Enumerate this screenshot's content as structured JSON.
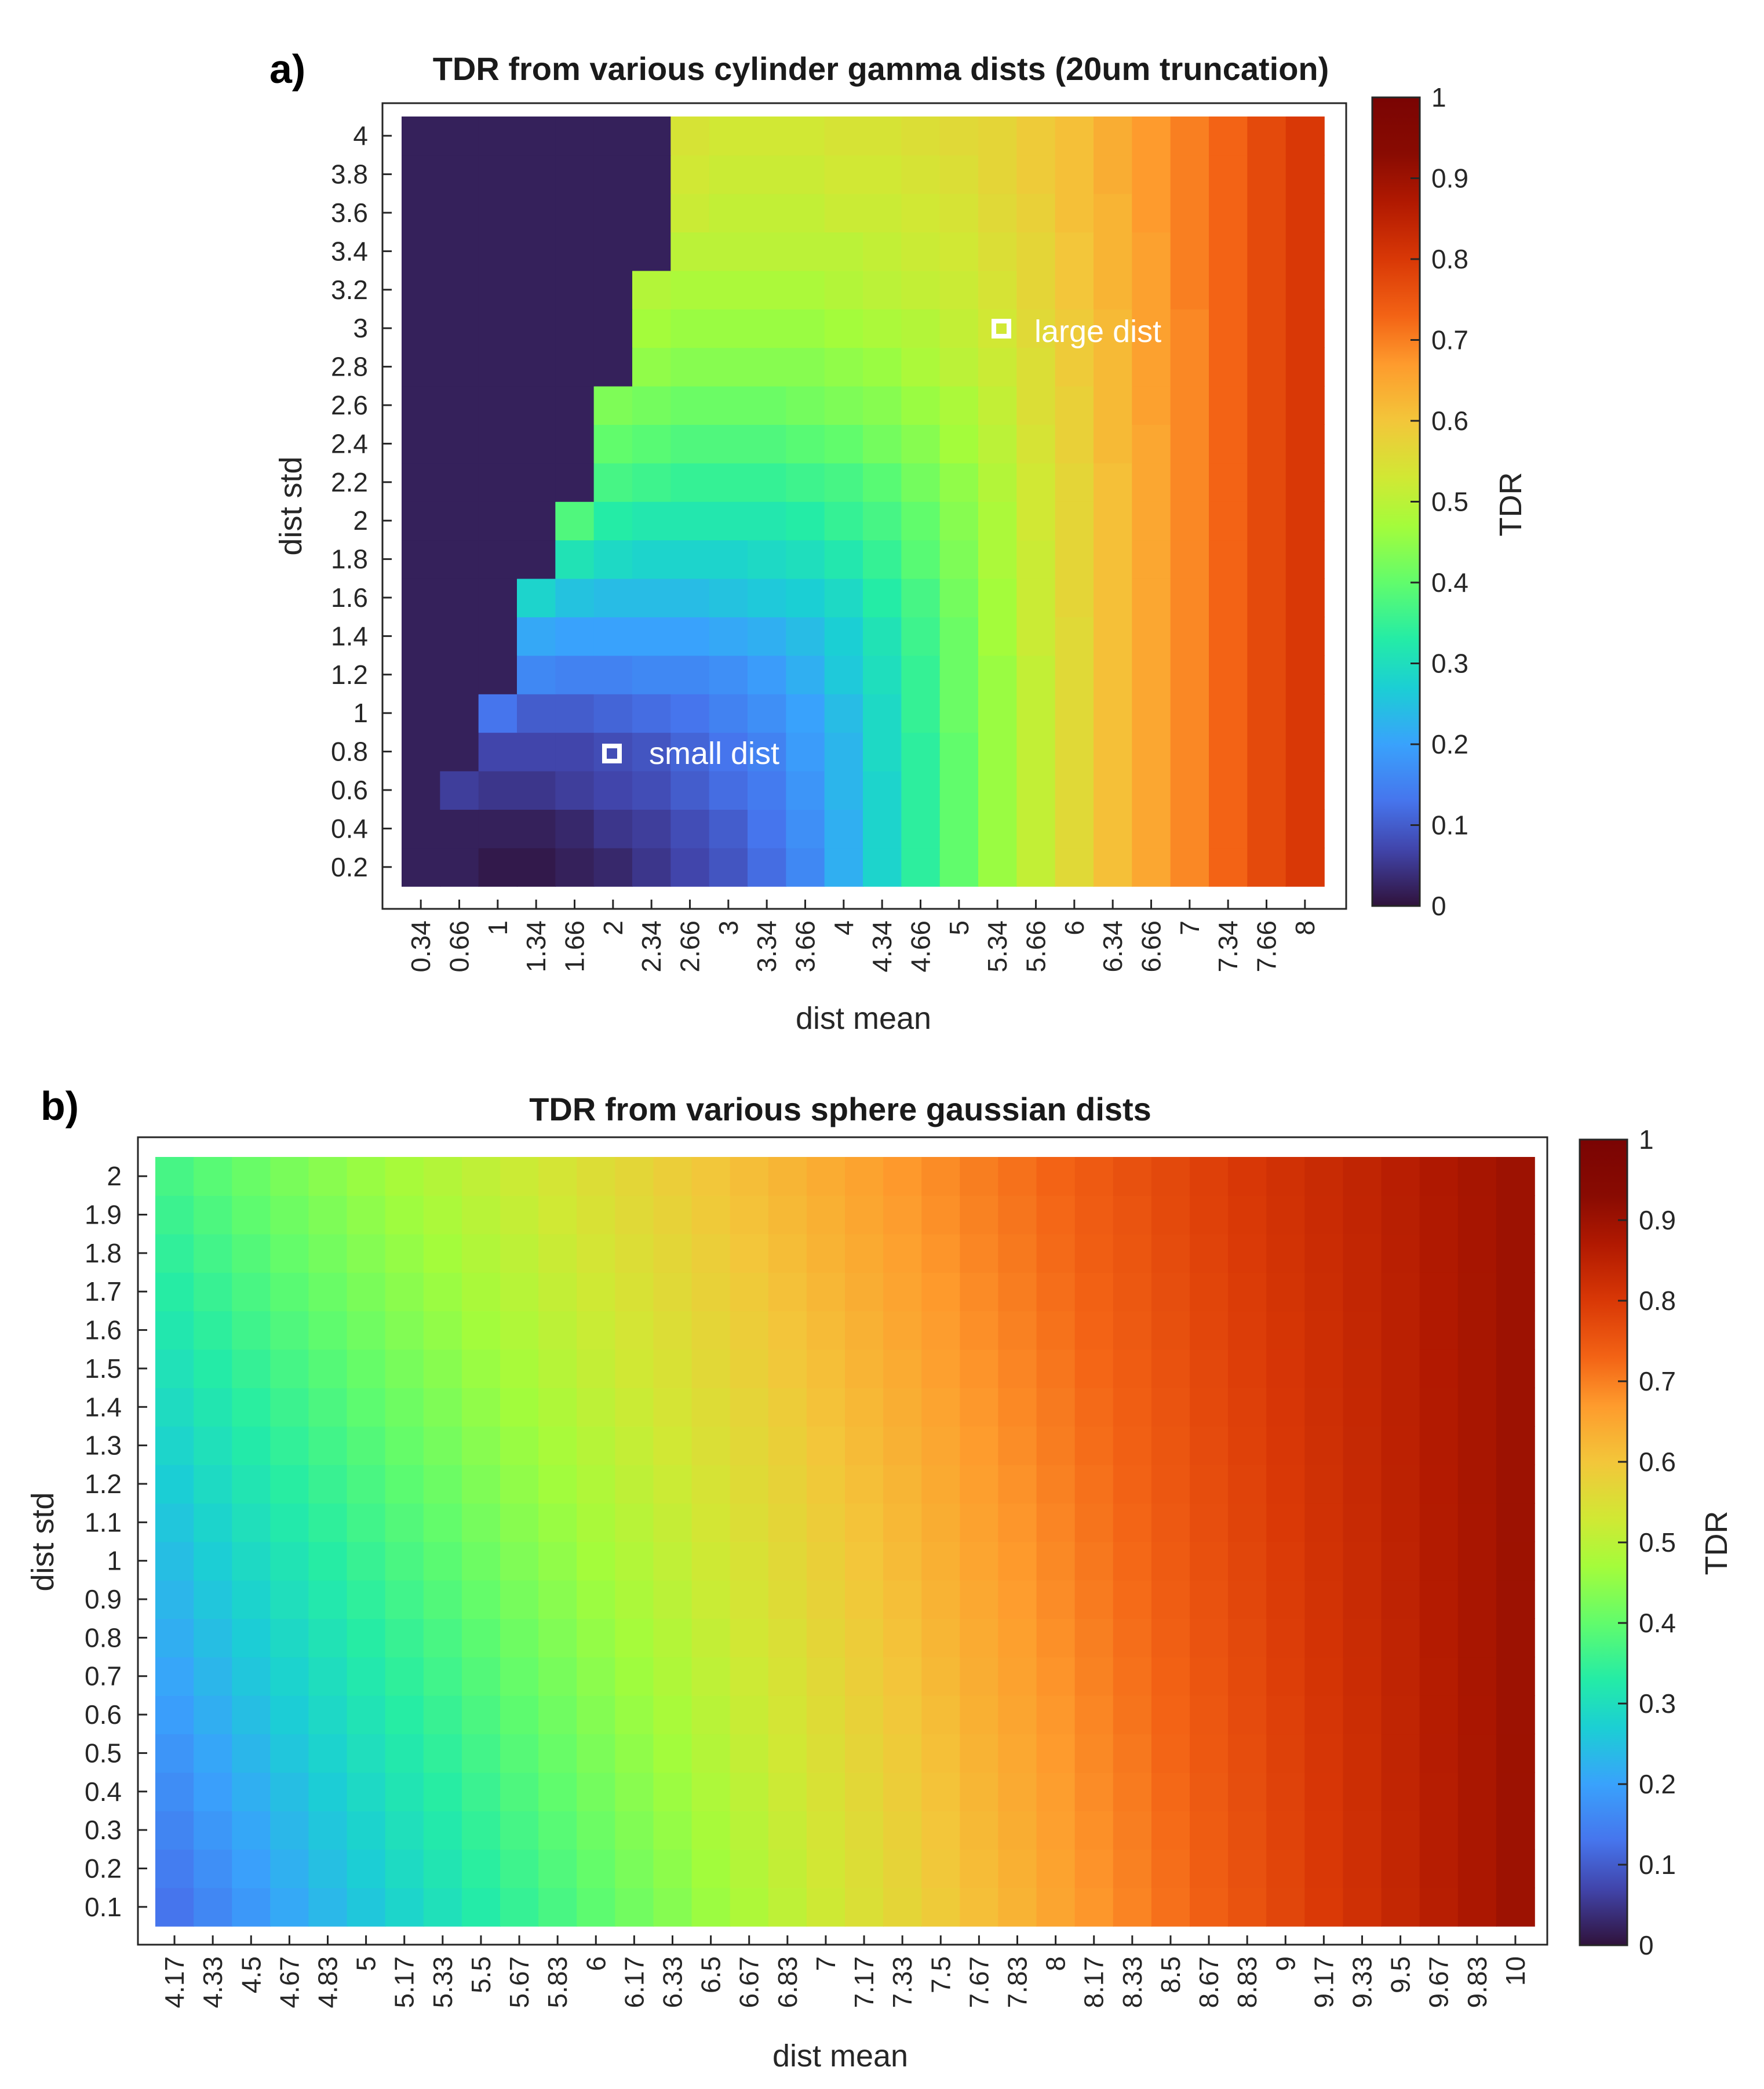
{
  "chart_data": [
    {
      "panel": "a)",
      "type": "heatmap",
      "title": "TDR from various cylinder gamma dists (20um truncation)",
      "xlabel": "dist mean",
      "ylabel": "dist std",
      "colorbar_label": "TDR",
      "colormap": "turbo",
      "clim": [
        0,
        1
      ],
      "colorbar_ticks": [
        "0",
        "0.1",
        "0.2",
        "0.3",
        "0.4",
        "0.5",
        "0.6",
        "0.7",
        "0.8",
        "0.9",
        "1"
      ],
      "x_ticks": [
        "0.34",
        "0.66",
        "1",
        "1.34",
        "1.66",
        "2",
        "2.34",
        "2.66",
        "3",
        "3.34",
        "3.66",
        "4",
        "4.34",
        "4.66",
        "5",
        "5.34",
        "5.66",
        "6",
        "6.34",
        "6.66",
        "7",
        "7.34",
        "7.66",
        "8"
      ],
      "y_ticks": [
        "0.2",
        "0.4",
        "0.6",
        "0.8",
        "1",
        "1.2",
        "1.4",
        "1.6",
        "1.8",
        "2",
        "2.2",
        "2.4",
        "2.6",
        "2.8",
        "3",
        "3.2",
        "3.4",
        "3.6",
        "3.8",
        "4"
      ],
      "grid": false,
      "values_description": "rows = dist std from 0.2 to 4 (bottom to top), columns = dist mean from 0.34 to 8 (left to right)",
      "values": [
        [
          0.02,
          0.02,
          0.01,
          0.01,
          0.02,
          0.03,
          0.05,
          0.07,
          0.09,
          0.12,
          0.16,
          0.22,
          0.28,
          0.34,
          0.4,
          0.46,
          0.51,
          0.56,
          0.61,
          0.65,
          0.69,
          0.73,
          0.77,
          0.8
        ],
        [
          0.02,
          0.02,
          0.02,
          0.02,
          0.03,
          0.05,
          0.06,
          0.08,
          0.1,
          0.13,
          0.17,
          0.22,
          0.28,
          0.34,
          0.4,
          0.46,
          0.51,
          0.56,
          0.61,
          0.65,
          0.69,
          0.73,
          0.77,
          0.8
        ],
        [
          0.02,
          0.06,
          0.05,
          0.05,
          0.06,
          0.07,
          0.08,
          0.1,
          0.12,
          0.14,
          0.18,
          0.23,
          0.28,
          0.34,
          0.4,
          0.46,
          0.51,
          0.56,
          0.61,
          0.65,
          0.69,
          0.73,
          0.77,
          0.8
        ],
        [
          0.02,
          0.02,
          0.07,
          0.07,
          0.07,
          0.08,
          0.09,
          0.11,
          0.13,
          0.15,
          0.19,
          0.23,
          0.29,
          0.34,
          0.4,
          0.46,
          0.51,
          0.56,
          0.61,
          0.65,
          0.69,
          0.73,
          0.77,
          0.8
        ],
        [
          0.02,
          0.02,
          0.13,
          0.1,
          0.1,
          0.11,
          0.12,
          0.13,
          0.15,
          0.17,
          0.2,
          0.24,
          0.29,
          0.35,
          0.41,
          0.46,
          0.51,
          0.56,
          0.61,
          0.65,
          0.69,
          0.73,
          0.77,
          0.8
        ],
        [
          0.02,
          0.02,
          0.02,
          0.16,
          0.15,
          0.15,
          0.16,
          0.16,
          0.17,
          0.19,
          0.22,
          0.26,
          0.3,
          0.35,
          0.41,
          0.46,
          0.51,
          0.56,
          0.61,
          0.65,
          0.69,
          0.73,
          0.77,
          0.8
        ],
        [
          0.02,
          0.02,
          0.02,
          0.21,
          0.2,
          0.2,
          0.2,
          0.2,
          0.21,
          0.22,
          0.24,
          0.27,
          0.31,
          0.36,
          0.41,
          0.47,
          0.52,
          0.56,
          0.61,
          0.65,
          0.69,
          0.73,
          0.77,
          0.8
        ],
        [
          0.02,
          0.02,
          0.02,
          0.28,
          0.25,
          0.24,
          0.24,
          0.24,
          0.25,
          0.26,
          0.27,
          0.29,
          0.33,
          0.37,
          0.42,
          0.47,
          0.52,
          0.57,
          0.61,
          0.65,
          0.69,
          0.73,
          0.77,
          0.8
        ],
        [
          0.02,
          0.02,
          0.02,
          0.02,
          0.31,
          0.29,
          0.28,
          0.28,
          0.28,
          0.29,
          0.3,
          0.32,
          0.35,
          0.39,
          0.43,
          0.48,
          0.52,
          0.57,
          0.61,
          0.65,
          0.69,
          0.73,
          0.77,
          0.8
        ],
        [
          0.02,
          0.02,
          0.02,
          0.02,
          0.38,
          0.33,
          0.32,
          0.32,
          0.32,
          0.32,
          0.33,
          0.35,
          0.37,
          0.4,
          0.44,
          0.48,
          0.53,
          0.57,
          0.61,
          0.65,
          0.69,
          0.73,
          0.77,
          0.8
        ],
        [
          0.02,
          0.02,
          0.02,
          0.02,
          0.02,
          0.37,
          0.36,
          0.35,
          0.35,
          0.35,
          0.36,
          0.37,
          0.39,
          0.42,
          0.45,
          0.49,
          0.53,
          0.57,
          0.61,
          0.65,
          0.69,
          0.73,
          0.77,
          0.8
        ],
        [
          0.02,
          0.02,
          0.02,
          0.02,
          0.02,
          0.4,
          0.39,
          0.38,
          0.38,
          0.38,
          0.39,
          0.4,
          0.42,
          0.44,
          0.47,
          0.5,
          0.54,
          0.58,
          0.62,
          0.65,
          0.69,
          0.73,
          0.77,
          0.8
        ],
        [
          0.02,
          0.02,
          0.02,
          0.02,
          0.02,
          0.43,
          0.42,
          0.41,
          0.41,
          0.41,
          0.42,
          0.43,
          0.44,
          0.46,
          0.48,
          0.51,
          0.55,
          0.58,
          0.62,
          0.66,
          0.69,
          0.73,
          0.77,
          0.8
        ],
        [
          0.02,
          0.02,
          0.02,
          0.02,
          0.02,
          0.02,
          0.45,
          0.44,
          0.44,
          0.44,
          0.44,
          0.45,
          0.46,
          0.48,
          0.5,
          0.52,
          0.55,
          0.59,
          0.62,
          0.66,
          0.69,
          0.73,
          0.77,
          0.8
        ],
        [
          0.02,
          0.02,
          0.02,
          0.02,
          0.02,
          0.02,
          0.47,
          0.46,
          0.46,
          0.46,
          0.46,
          0.47,
          0.48,
          0.49,
          0.51,
          0.53,
          0.56,
          0.59,
          0.62,
          0.66,
          0.69,
          0.73,
          0.77,
          0.8
        ],
        [
          0.02,
          0.02,
          0.02,
          0.02,
          0.02,
          0.02,
          0.49,
          0.48,
          0.48,
          0.48,
          0.48,
          0.49,
          0.5,
          0.51,
          0.52,
          0.54,
          0.57,
          0.6,
          0.63,
          0.66,
          0.7,
          0.73,
          0.77,
          0.8
        ],
        [
          0.02,
          0.02,
          0.02,
          0.02,
          0.02,
          0.02,
          0.02,
          0.5,
          0.5,
          0.5,
          0.5,
          0.5,
          0.51,
          0.52,
          0.53,
          0.55,
          0.57,
          0.6,
          0.63,
          0.66,
          0.7,
          0.73,
          0.77,
          0.8
        ],
        [
          0.02,
          0.02,
          0.02,
          0.02,
          0.02,
          0.02,
          0.02,
          0.52,
          0.51,
          0.51,
          0.51,
          0.52,
          0.52,
          0.53,
          0.54,
          0.56,
          0.58,
          0.61,
          0.63,
          0.67,
          0.7,
          0.73,
          0.77,
          0.8
        ],
        [
          0.02,
          0.02,
          0.02,
          0.02,
          0.02,
          0.02,
          0.02,
          0.53,
          0.52,
          0.52,
          0.52,
          0.53,
          0.53,
          0.54,
          0.55,
          0.57,
          0.59,
          0.61,
          0.64,
          0.67,
          0.7,
          0.73,
          0.77,
          0.8
        ],
        [
          0.02,
          0.02,
          0.02,
          0.02,
          0.02,
          0.02,
          0.02,
          0.54,
          0.53,
          0.53,
          0.53,
          0.54,
          0.54,
          0.55,
          0.56,
          0.57,
          0.59,
          0.61,
          0.64,
          0.67,
          0.7,
          0.73,
          0.77,
          0.8
        ]
      ],
      "annotations": [
        {
          "text": "small dist",
          "x": "2",
          "y": "0.8"
        },
        {
          "text": "large dist",
          "x": "5.34",
          "y": "3"
        }
      ]
    },
    {
      "panel": "b)",
      "type": "heatmap",
      "title": "TDR from various sphere gaussian dists",
      "xlabel": "dist mean",
      "ylabel": "dist std",
      "colorbar_label": "TDR",
      "colormap": "turbo",
      "clim": [
        0,
        1
      ],
      "colorbar_ticks": [
        "0",
        "0.1",
        "0.2",
        "0.3",
        "0.4",
        "0.5",
        "0.6",
        "0.7",
        "0.8",
        "0.9",
        "1"
      ],
      "x_ticks": [
        "4.17",
        "4.33",
        "4.5",
        "4.67",
        "4.83",
        "5",
        "5.17",
        "5.33",
        "5.5",
        "5.67",
        "5.83",
        "6",
        "6.17",
        "6.33",
        "6.5",
        "6.67",
        "6.83",
        "7",
        "7.17",
        "7.33",
        "7.5",
        "7.67",
        "7.83",
        "8",
        "8.17",
        "8.33",
        "8.5",
        "8.67",
        "8.83",
        "9",
        "9.17",
        "9.33",
        "9.5",
        "9.67",
        "9.83",
        "10"
      ],
      "y_ticks": [
        "0.1",
        "0.2",
        "0.3",
        "0.4",
        "0.5",
        "0.6",
        "0.7",
        "0.8",
        "0.9",
        "1",
        "1.1",
        "1.2",
        "1.3",
        "1.4",
        "1.5",
        "1.6",
        "1.7",
        "1.8",
        "1.9",
        "2"
      ],
      "grid": false,
      "values_description": "TDR approximately 0.13 + 0.12*(mean-4.17) at low std rising to approx 0.35 at std 2 on left; uniform approx 0.88-0.92 at mean 10",
      "left_column_range": [
        0.13,
        0.37
      ],
      "right_column_value": 0.9
    }
  ]
}
